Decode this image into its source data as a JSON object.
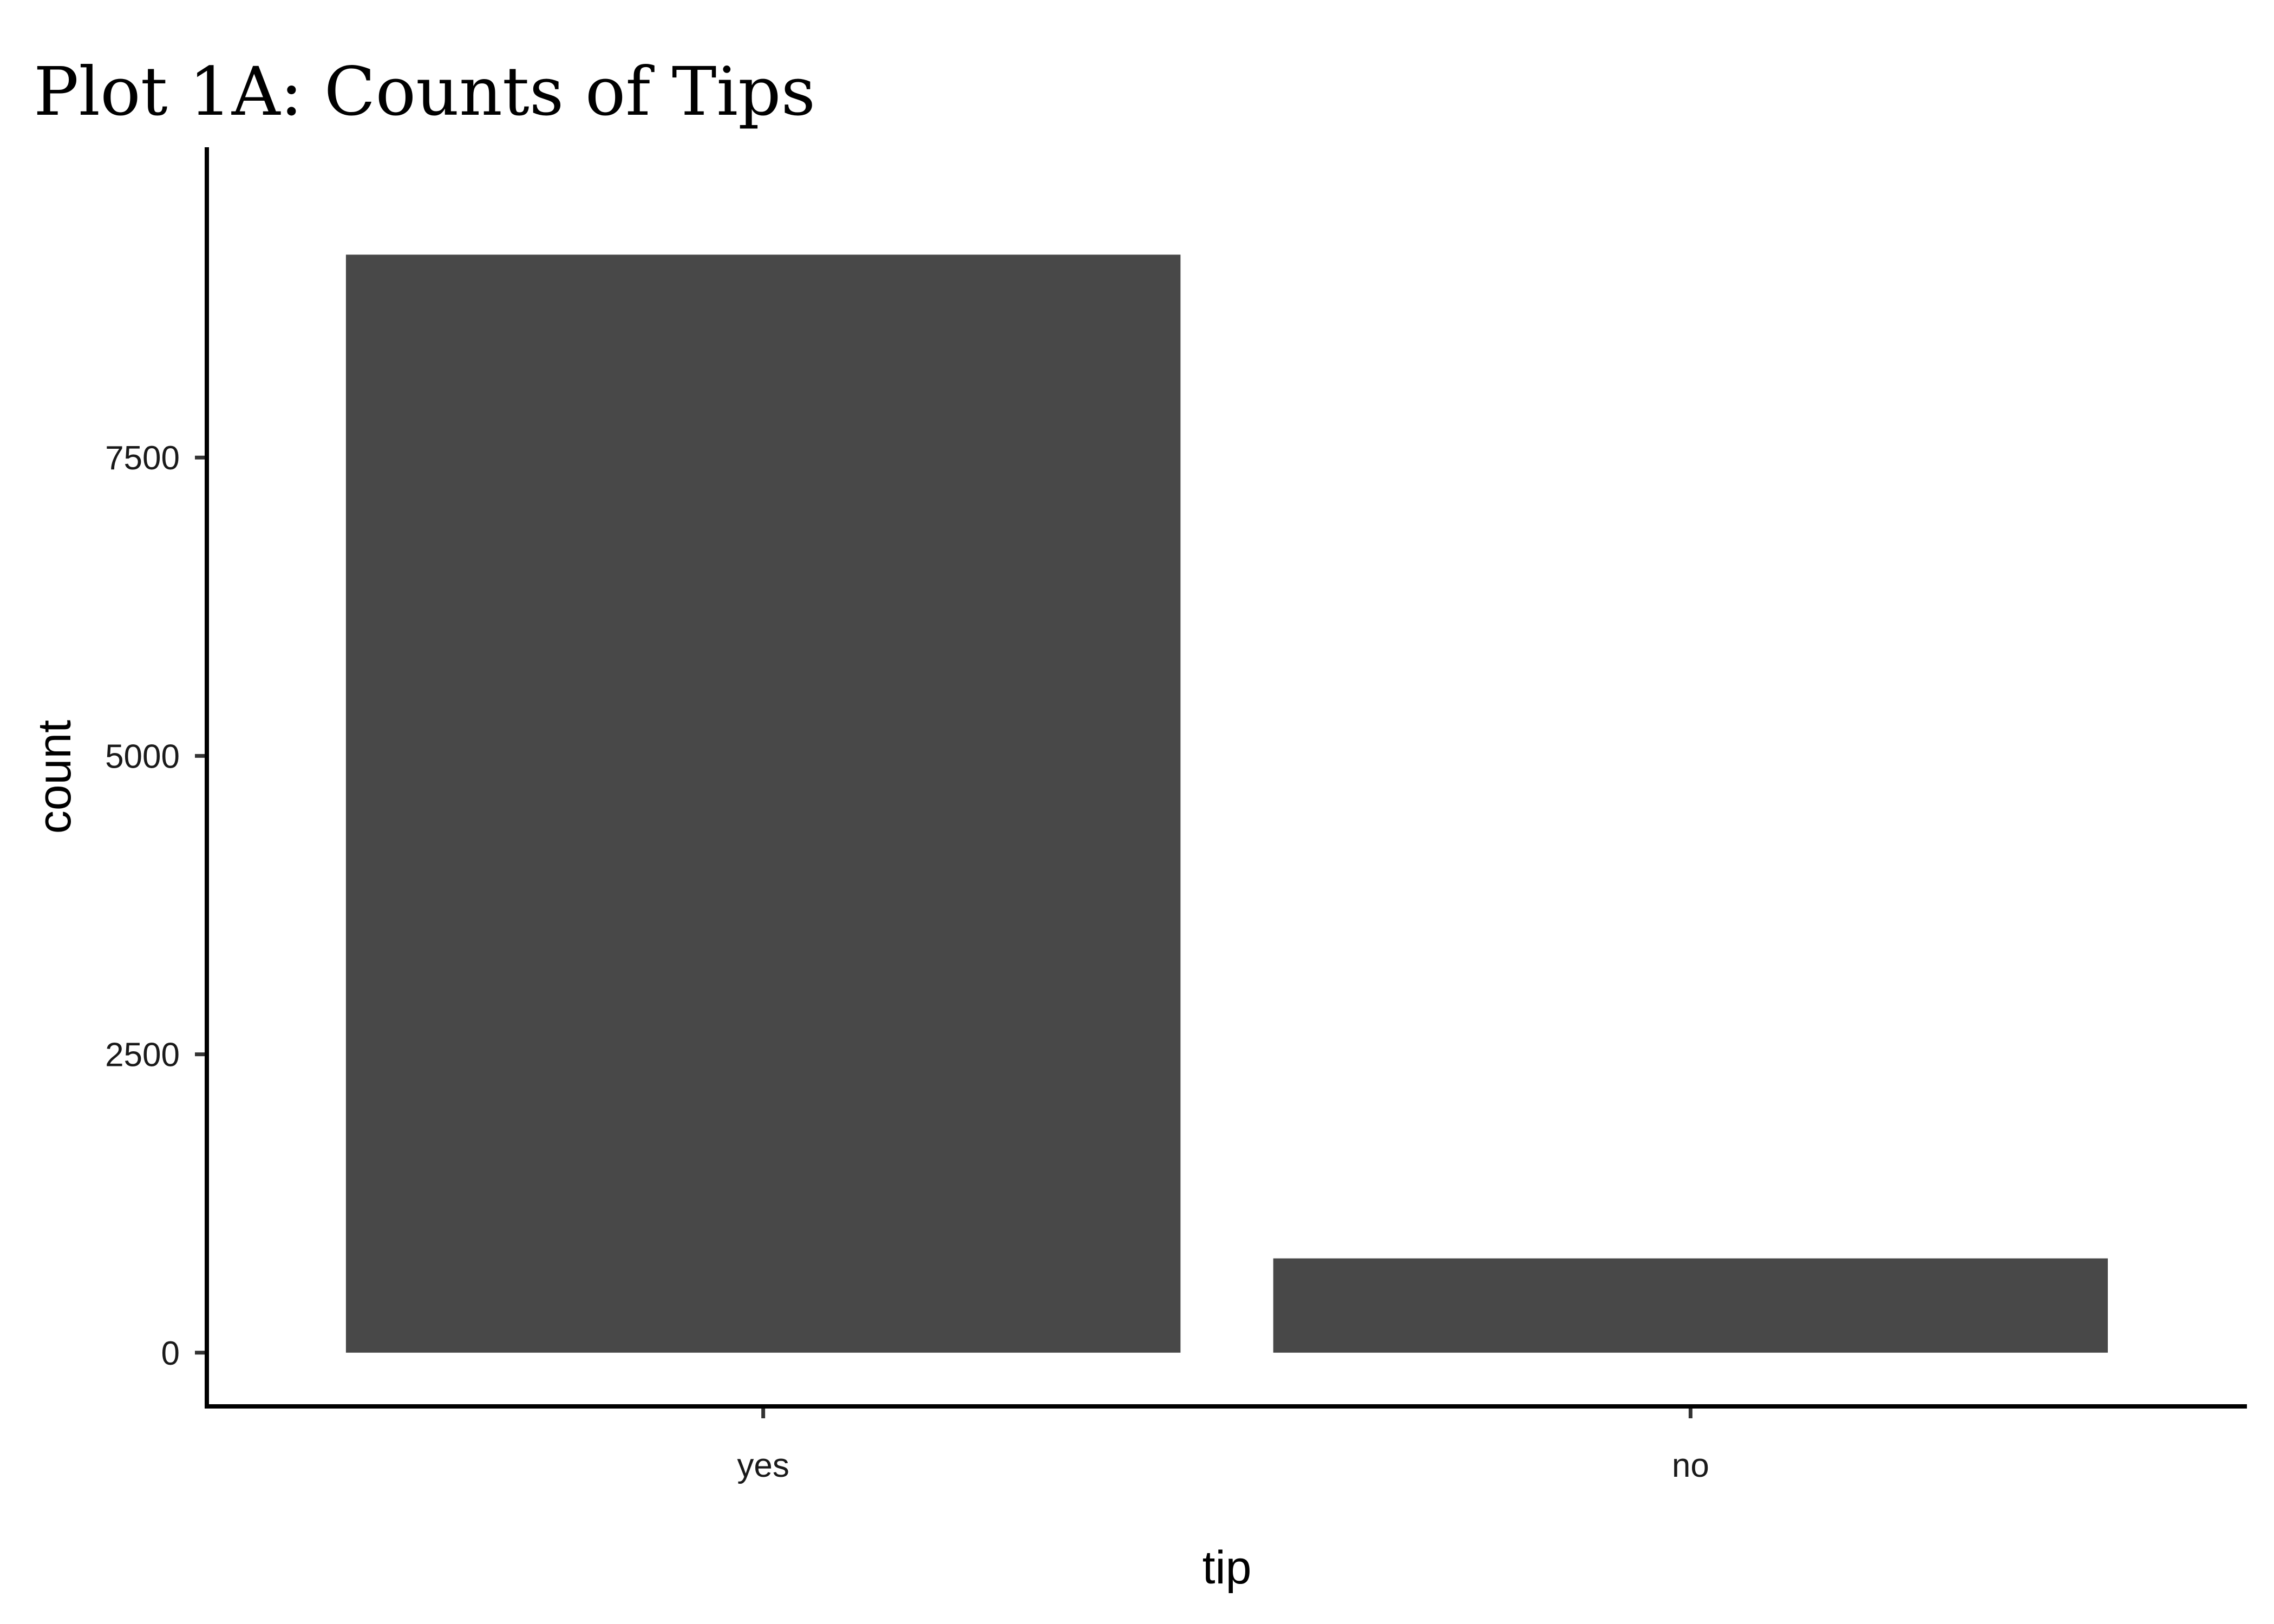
{
  "chart_data": {
    "type": "bar",
    "title": "Plot 1A: Counts of Tips",
    "xlabel": "tip",
    "ylabel": "count",
    "categories": [
      "yes",
      "no"
    ],
    "values": [
      9200,
      790
    ],
    "ylim": [
      -450,
      10100
    ],
    "yticks": [
      0,
      2500,
      5000,
      7500
    ],
    "ytick_labels": [
      "0",
      "2500",
      "5000",
      "7500"
    ],
    "grid": false,
    "bar_color": "#484848",
    "axis_color": "#000000"
  }
}
